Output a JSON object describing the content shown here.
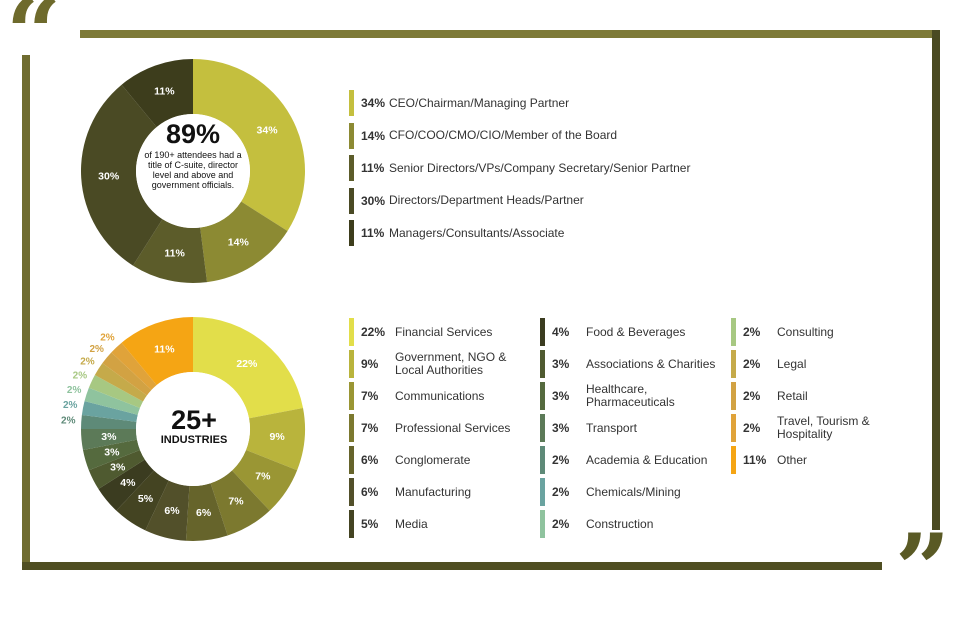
{
  "decor": {
    "quote_open": "“",
    "quote_close": "”"
  },
  "chart_data": [
    {
      "type": "pie",
      "title": "",
      "center": {
        "big": "89%",
        "small": "of 190+ attendees had a title of C-suite, director level and above and government officials."
      },
      "slices": [
        {
          "label": "CEO/Chairman/Managing Partner",
          "pct_label": "34%",
          "value": 34,
          "color": "#c4bf3e"
        },
        {
          "label": "CFO/COO/CMO/CIO/Member of the Board",
          "pct_label": "14%",
          "value": 14,
          "color": "#8c8a33"
        },
        {
          "label": "Senior Directors/VPs/Company Secretary/Senior Partner",
          "pct_label": "11%",
          "value": 11,
          "color": "#5c5c2a"
        },
        {
          "label": "Directors/Department Heads/Partner",
          "pct_label": "30%",
          "value": 30,
          "color": "#4a4a24"
        },
        {
          "label": "Managers/Consultants/Associate",
          "pct_label": "11%",
          "value": 11,
          "color": "#3d3d1c"
        }
      ]
    },
    {
      "type": "pie",
      "title": "",
      "center": {
        "big": "25+",
        "small": "INDUSTRIES"
      },
      "slices": [
        {
          "label": "Financial Services",
          "pct_label": "22%",
          "value": 22,
          "color": "#e2de4a"
        },
        {
          "label": "Government, NGO & Local Authorities",
          "pct_label": "9%",
          "value": 9,
          "color": "#b9b43c"
        },
        {
          "label": "Communications",
          "pct_label": "7%",
          "value": 7,
          "color": "#9a9634"
        },
        {
          "label": "Professional Services",
          "pct_label": "7%",
          "value": 7,
          "color": "#7c792f"
        },
        {
          "label": "Conglomerate",
          "pct_label": "6%",
          "value": 6,
          "color": "#66642b"
        },
        {
          "label": "Manufacturing",
          "pct_label": "6%",
          "value": 6,
          "color": "#52502a"
        },
        {
          "label": "Media",
          "pct_label": "5%",
          "value": 5,
          "color": "#444422"
        },
        {
          "label": "Food & Beverages",
          "pct_label": "4%",
          "value": 4,
          "color": "#3b3c20"
        },
        {
          "label": "Associations & Charities",
          "pct_label": "3%",
          "value": 3,
          "color": "#4f5a30"
        },
        {
          "label": "Healthcare, Pharmaceuticals",
          "pct_label": "3%",
          "value": 3,
          "color": "#556a3e"
        },
        {
          "label": "Transport",
          "pct_label": "3%",
          "value": 3,
          "color": "#5c7a58"
        },
        {
          "label": "Academia & Education",
          "pct_label": "2%",
          "value": 2,
          "color": "#5e8a78"
        },
        {
          "label": "Chemicals/Mining",
          "pct_label": "2%",
          "value": 2,
          "color": "#6aa3a0"
        },
        {
          "label": "Construction",
          "pct_label": "2%",
          "value": 2,
          "color": "#8fc39e"
        },
        {
          "label": "Consulting",
          "pct_label": "2%",
          "value": 2,
          "color": "#a7c882"
        },
        {
          "label": "Legal",
          "pct_label": "2%",
          "value": 2,
          "color": "#c5aa4a"
        },
        {
          "label": "Retail",
          "pct_label": "2%",
          "value": 2,
          "color": "#d2a243"
        },
        {
          "label": "Travel, Tourism & Hospitality",
          "pct_label": "2%",
          "value": 2,
          "color": "#e0a33a"
        },
        {
          "label": "Other",
          "pct_label": "11%",
          "value": 11,
          "color": "#f5a514"
        }
      ]
    }
  ]
}
